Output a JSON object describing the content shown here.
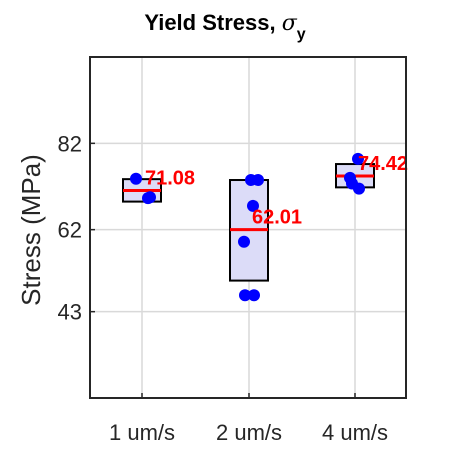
{
  "chart_data": {
    "type": "box",
    "title": "Yield Stress, ",
    "title_symbol": "σ",
    "title_subscript": "y",
    "xlabel": "",
    "ylabel": "Stress (MPa)",
    "categories": [
      "1 um/s",
      "2 um/s",
      "4 um/s"
    ],
    "yticks": [
      43,
      62,
      82
    ],
    "ylim": [
      23,
      102
    ],
    "grid": true,
    "colors": {
      "box_fill": "#dcdcf8",
      "box_edge": "#000000",
      "median": "#ff0000",
      "points": "#0000ff",
      "labels": "#ff0000",
      "grid": "#d9d9d9"
    },
    "boxes": [
      {
        "category": "1 um/s",
        "q1": 68.5,
        "q3": 73.7,
        "median": 71.08,
        "label": "71.08",
        "points": [
          73.8,
          69.5,
          69.3
        ]
      },
      {
        "category": "2 um/s",
        "q1": 50.2,
        "q3": 73.5,
        "median": 62.01,
        "label": "62.01",
        "points": [
          73.5,
          73.5,
          67.5,
          59.2,
          46.8,
          46.8
        ]
      },
      {
        "category": "4 um/s",
        "q1": 71.8,
        "q3": 77.2,
        "median": 74.42,
        "label": "74.42",
        "points": [
          78.4,
          74.0,
          72.7,
          71.5
        ]
      }
    ]
  }
}
